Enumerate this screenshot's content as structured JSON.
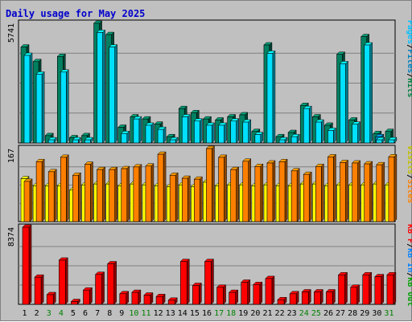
{
  "chart_data": {
    "type": "bar",
    "title": "Daily usage for May 2025",
    "title_color": "#0000cc",
    "x_labels": [
      "1",
      "2",
      "3",
      "4",
      "5",
      "6",
      "7",
      "8",
      "9",
      "10",
      "11",
      "12",
      "13",
      "14",
      "15",
      "16",
      "17",
      "18",
      "19",
      "20",
      "21",
      "22",
      "23",
      "24",
      "25",
      "26",
      "27",
      "28",
      "29",
      "30",
      "31"
    ],
    "weekend_days": [
      3,
      4,
      10,
      11,
      17,
      18,
      24,
      25,
      31
    ],
    "weekend_label_color": "#008000",
    "panels": [
      {
        "id": "hits-files-pages",
        "max_label": "5741",
        "ylim": [
          0,
          5741
        ],
        "legend": [
          {
            "text": "Pages",
            "color": "#00c0ff"
          },
          {
            "text": "/",
            "color": "#000000"
          },
          {
            "text": "Files",
            "color": "#0080c0"
          },
          {
            "text": "/",
            "color": "#000000"
          },
          {
            "text": "Hits",
            "color": "#008040"
          }
        ],
        "series": [
          {
            "name": "Hits",
            "color": "#008060",
            "values": [
              4600,
              3900,
              350,
              4150,
              250,
              350,
              5741,
              5200,
              750,
              1250,
              1150,
              900,
              300,
              1650,
              1450,
              1150,
              1100,
              1250,
              1350,
              550,
              4700,
              300,
              500,
              1800,
              1250,
              850,
              4250,
              1100,
              5100,
              450,
              550
            ]
          },
          {
            "name": "Files",
            "color": "#0080c0",
            "values": [
              0,
              0,
              0,
              0,
              0,
              0,
              0,
              0,
              0,
              0,
              0,
              0,
              0,
              0,
              0,
              0,
              0,
              0,
              0,
              0,
              0,
              0,
              0,
              0,
              0,
              0,
              0,
              0,
              0,
              300,
              0
            ]
          },
          {
            "name": "Pages",
            "color": "#00e0ff",
            "values": [
              4200,
              3300,
              150,
              3400,
              150,
              150,
              5300,
              4600,
              450,
              1150,
              850,
              650,
              150,
              1250,
              1050,
              850,
              850,
              1050,
              1000,
              400,
              4300,
              150,
              300,
              1650,
              1000,
              600,
              3800,
              900,
              4700,
              150,
              150
            ]
          }
        ]
      },
      {
        "id": "visits-sites",
        "max_label": "167",
        "ylim": [
          0,
          167
        ],
        "legend": [
          {
            "text": "Visits",
            "color": "#c0c000"
          },
          {
            "text": "/",
            "color": "#000000"
          },
          {
            "text": "Sites",
            "color": "#ff8000"
          }
        ],
        "series": [
          {
            "name": "Visits",
            "color": "#ffff00",
            "values": [
              98,
              82,
              82,
              82,
              72,
              84,
              86,
              86,
              82,
              86,
              84,
              82,
              80,
              84,
              80,
              90,
              82,
              84,
              84,
              82,
              84,
              82,
              82,
              86,
              86,
              82,
              84,
              84,
              84,
              86,
              84
            ]
          },
          {
            "name": "Sites",
            "color": "#ff8000",
            "values": [
              92,
              137,
              114,
              147,
              106,
              131,
              119,
              119,
              121,
              125,
              127,
              154,
              106,
              99,
              97,
              167,
              147,
              119,
              138,
              126,
              134,
              137,
              116,
              108,
              126,
              148,
              135,
              134,
              132,
              130,
              148
            ]
          }
        ]
      },
      {
        "id": "kbf-kbin-kbout",
        "max_label": "8374",
        "ylim": [
          0,
          8374
        ],
        "legend": [
          {
            "text": "KB F",
            "color": "#ff0000"
          },
          {
            "text": "/",
            "color": "#000000"
          },
          {
            "text": "KB In",
            "color": "#0080ff"
          },
          {
            "text": "/",
            "color": "#000000"
          },
          {
            "text": "KB Out",
            "color": "#00a000"
          }
        ],
        "series": [
          {
            "name": "KB F",
            "color": "#ff0000",
            "values": [
              8374,
              2950,
              1050,
              4800,
              300,
              1550,
              3250,
              4400,
              1150,
              1300,
              1000,
              850,
              450,
              4650,
              2050,
              4650,
              1850,
              1300,
              2400,
              2150,
              2800,
              500,
              1150,
              1350,
              1350,
              1350,
              3200,
              1850,
              3200,
              3000,
              3200
            ]
          }
        ]
      }
    ]
  }
}
